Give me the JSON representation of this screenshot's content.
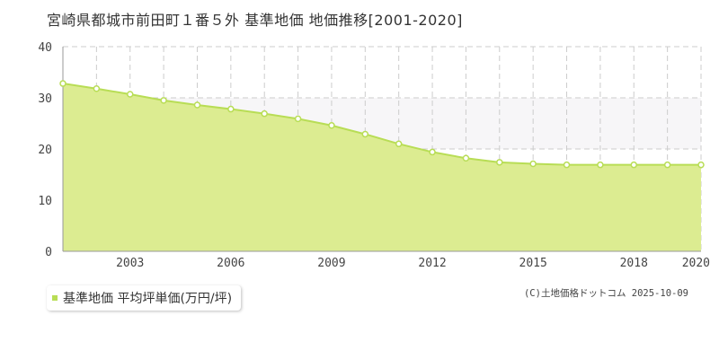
{
  "title": "宮崎県都城市前田町１番５外 基準地価 地価推移[2001-2020]",
  "copyright": "(C)土地価格ドットコム 2025-10-09",
  "colors": {
    "line": "#b8dd55",
    "fill": "#dcec91",
    "point_fill": "#ffffff",
    "grid": "#cccccc",
    "band": "#f7f6f8",
    "axis": "#999999"
  },
  "chart_data": {
    "type": "area",
    "title": "",
    "xlabel": "",
    "ylabel": "",
    "x": [
      2001,
      2002,
      2003,
      2004,
      2005,
      2006,
      2007,
      2008,
      2009,
      2010,
      2011,
      2012,
      2013,
      2014,
      2015,
      2016,
      2017,
      2018,
      2019,
      2020
    ],
    "series": [
      {
        "name": "基準地価 平均坪単価(万円/坪)",
        "values": [
          32.8,
          31.8,
          30.7,
          29.5,
          28.6,
          27.8,
          26.9,
          25.9,
          24.6,
          22.9,
          21.0,
          19.4,
          18.2,
          17.4,
          17.1,
          16.9,
          16.9,
          16.9,
          16.9,
          16.9
        ]
      }
    ],
    "xlim": [
      2001,
      2020
    ],
    "ylim": [
      0,
      40
    ],
    "y_ticks": [
      0,
      10,
      20,
      30,
      40
    ],
    "x_tick_labels": [
      "2003",
      "2006",
      "2009",
      "2012",
      "2015",
      "2018",
      "2020"
    ],
    "x_tick_values": [
      2003,
      2006,
      2009,
      2012,
      2015,
      2018,
      2020
    ],
    "grid": true,
    "grid_style": "dashed",
    "shaded_band_y": [
      20,
      30
    ],
    "legend_position": "bottom-left"
  }
}
